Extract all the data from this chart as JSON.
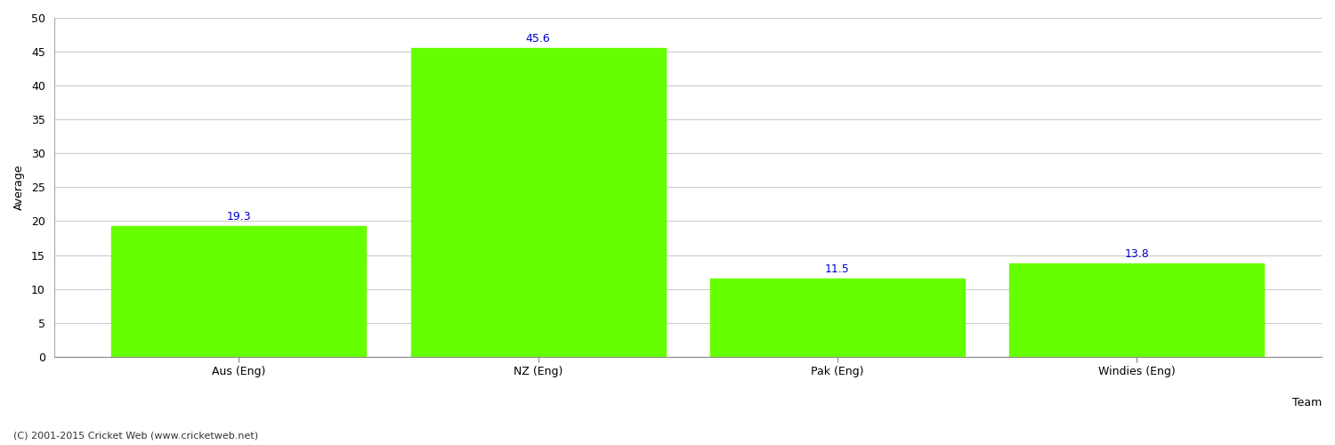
{
  "categories": [
    "Aus (Eng)",
    "NZ (Eng)",
    "Pak (Eng)",
    "Windies (Eng)"
  ],
  "values": [
    19.3,
    45.6,
    11.5,
    13.8
  ],
  "bar_color": "#66ff00",
  "bar_edgecolor": "#66ff00",
  "value_color": "#0000cc",
  "value_fontsize": 9,
  "xlabel": "Team",
  "ylabel": "Average",
  "ylim": [
    0,
    50
  ],
  "yticks": [
    0,
    5,
    10,
    15,
    20,
    25,
    30,
    35,
    40,
    45,
    50
  ],
  "grid_color": "#cccccc",
  "background_color": "#ffffff",
  "footer": "(C) 2001-2015 Cricket Web (www.cricketweb.net)",
  "footer_fontsize": 8,
  "footer_color": "#333333",
  "axis_label_fontsize": 9,
  "tick_fontsize": 9
}
